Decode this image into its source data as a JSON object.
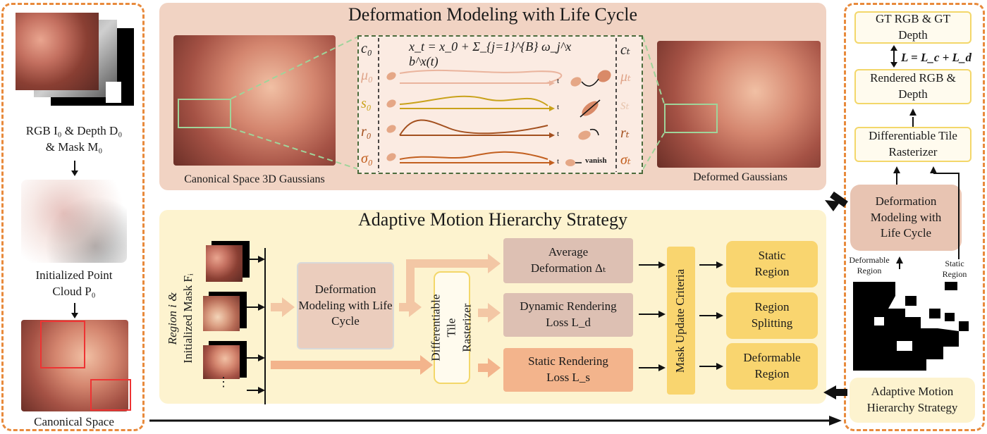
{
  "left_panel": {
    "rgb_caption_line1": "RGB I₀ & Depth D₀",
    "rgb_caption_line2": "& Mask M₀",
    "pointcloud_caption_line1": "Initialized Point",
    "pointcloud_caption_line2": "Cloud P₀",
    "canonical_caption": "Canonical Space"
  },
  "top_panel": {
    "title": "Deformation Modeling with Life Cycle",
    "canonical_caption": "Canonical Space 3D Gaussians",
    "deformed_caption": "Deformed Gaussians",
    "equation": "x_t = x_0 + Σ_{j=1}^{B} ω_j^x b^x(t)",
    "left_params": [
      "c₀",
      "μ₀",
      "s₀",
      "r₀",
      "σ₀"
    ],
    "right_params": [
      "cₜ",
      "μₜ",
      "sₜ",
      "rₜ",
      "σₜ"
    ],
    "time_label": "t",
    "vanish_label": "vanish"
  },
  "bottom_panel": {
    "title": "Adaptive Motion Hierarchy Strategy",
    "region_label_line1": "Region i &",
    "region_label_line2": "Initialized Mask Fᵢ",
    "ellipsis": "⋮",
    "deformation_box": "Deformation Modeling with Life Cycle",
    "rasterizer_box": "Differentiable Tile Rasterizer",
    "avg_deformation": "Average Deformation Δₜ",
    "dynamic_loss": "Dynamic Rendering Loss L_d",
    "static_loss": "Static Rendering Loss L_s",
    "mask_update": "Mask Update Criteria",
    "static_region": "Static Region",
    "region_splitting": "Region Splitting",
    "deformable_region": "Deformable Region"
  },
  "right_panel": {
    "gt_box": "GT RGB & GT Depth",
    "loss": "L = L_c + L_d",
    "rendered_box": "Rendered RGB & Depth",
    "rasterizer_box": "Differentiable Tile Rasterizer",
    "deformation_box": "Deformation Modeling with Life Cycle",
    "deformable_region_label": "Deformable Region",
    "static_region_label": "Static Region",
    "amhs_box": "Adaptive Motion Hierarchy Strategy"
  },
  "colors": {
    "dashed_orange": "#e88a3c",
    "top_panel_bg": "#f1d3c3",
    "bottom_panel_bg": "#fdf3cf",
    "gold": "#f9d56f",
    "curve_mu": "#e8a68a",
    "curve_s": "#c9a21a",
    "curve_r": "#a3501f",
    "curve_sigma": "#c25f1f"
  }
}
